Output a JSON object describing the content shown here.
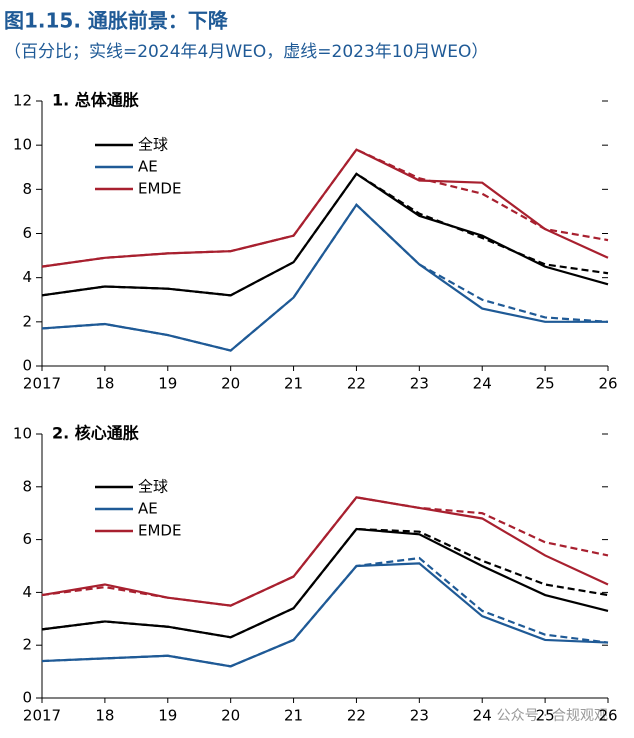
{
  "figure": {
    "title": "图1.15. 通胀前景：下降",
    "subtitle": "（百分比；实线=2024年4月WEO，虚线=2023年10月WEO）"
  },
  "watermark": "公众号 · 合规观观",
  "chart_data": [
    {
      "type": "line",
      "title": "1. 总体通胀",
      "categories": [
        "2017",
        "18",
        "19",
        "20",
        "21",
        "22",
        "23",
        "24",
        "25",
        "26"
      ],
      "ylim": [
        0,
        12
      ],
      "yticks": [
        0,
        2,
        4,
        6,
        8,
        10,
        12
      ],
      "series": [
        {
          "name": "全球",
          "color": "#000000",
          "values": [
            3.2,
            3.6,
            3.5,
            3.2,
            4.7,
            8.7,
            6.8,
            5.9,
            4.5,
            3.7
          ]
        },
        {
          "name": "AE",
          "color": "#1f5a96",
          "values": [
            1.7,
            1.9,
            1.4,
            0.7,
            3.1,
            7.3,
            4.6,
            2.6,
            2.0,
            2.0
          ]
        },
        {
          "name": "EMDE",
          "color": "#a8202f",
          "values": [
            4.5,
            4.9,
            5.1,
            5.2,
            5.9,
            9.8,
            8.4,
            8.3,
            6.2,
            4.9
          ]
        },
        {
          "color": "#000000",
          "dashed": true,
          "values": [
            3.2,
            3.6,
            3.5,
            3.2,
            4.7,
            8.7,
            6.9,
            5.8,
            4.6,
            4.2
          ]
        },
        {
          "color": "#1f5a96",
          "dashed": true,
          "values": [
            1.7,
            1.9,
            1.4,
            0.7,
            3.1,
            7.3,
            4.6,
            3.0,
            2.2,
            2.0
          ]
        },
        {
          "color": "#a8202f",
          "dashed": true,
          "values": [
            4.5,
            4.9,
            5.1,
            5.2,
            5.9,
            9.8,
            8.5,
            7.8,
            6.2,
            5.7
          ]
        }
      ]
    },
    {
      "type": "line",
      "title": "2. 核心通胀",
      "categories": [
        "2017",
        "18",
        "19",
        "20",
        "21",
        "22",
        "23",
        "24",
        "25",
        "26"
      ],
      "ylim": [
        0,
        10
      ],
      "yticks": [
        0,
        2,
        4,
        6,
        8,
        10
      ],
      "series": [
        {
          "name": "全球",
          "color": "#000000",
          "values": [
            2.6,
            2.9,
            2.7,
            2.3,
            3.4,
            6.4,
            6.2,
            5.0,
            3.9,
            3.3
          ]
        },
        {
          "name": "AE",
          "color": "#1f5a96",
          "values": [
            1.4,
            1.5,
            1.6,
            1.2,
            2.2,
            5.0,
            5.1,
            3.1,
            2.2,
            2.1
          ]
        },
        {
          "name": "EMDE",
          "color": "#a8202f",
          "values": [
            3.9,
            4.3,
            3.8,
            3.5,
            4.6,
            7.6,
            7.2,
            6.8,
            5.4,
            4.3
          ]
        },
        {
          "color": "#000000",
          "dashed": true,
          "values": [
            2.6,
            2.9,
            2.7,
            2.3,
            3.4,
            6.4,
            6.3,
            5.2,
            4.3,
            3.9
          ]
        },
        {
          "color": "#1f5a96",
          "dashed": true,
          "values": [
            1.4,
            1.5,
            1.6,
            1.2,
            2.2,
            5.0,
            5.3,
            3.3,
            2.4,
            2.1
          ]
        },
        {
          "color": "#a8202f",
          "dashed": true,
          "values": [
            3.9,
            4.2,
            3.8,
            3.5,
            4.6,
            7.6,
            7.2,
            7.0,
            5.9,
            5.4
          ]
        }
      ]
    }
  ]
}
